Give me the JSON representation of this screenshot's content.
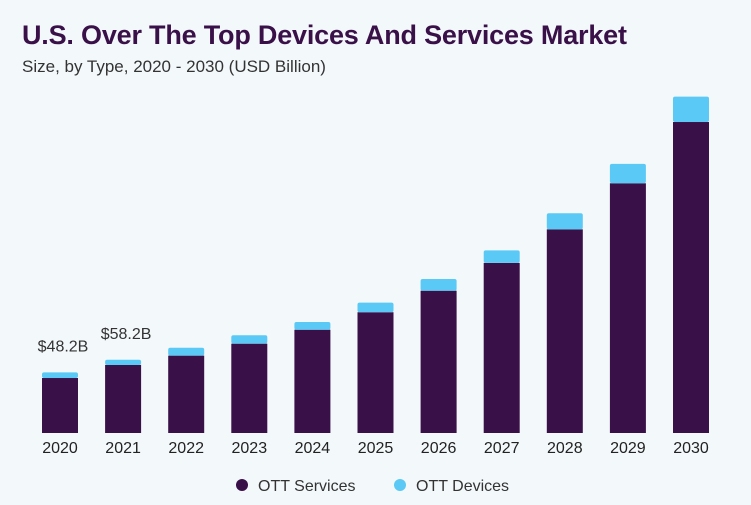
{
  "chart_data": {
    "type": "bar",
    "stacked": true,
    "title": "U.S. Over The Top Devices And Services Market",
    "subtitle": "Size, by Type, 2020 - 2030 (USD Billion)",
    "categories": [
      "2020",
      "2021",
      "2022",
      "2023",
      "2024",
      "2025",
      "2026",
      "2027",
      "2028",
      "2029",
      "2030"
    ],
    "series": [
      {
        "name": "OTT Services",
        "color": "#3a1049",
        "values": [
          43.7,
          54.1,
          61.5,
          71.0,
          82.1,
          96.0,
          113.1,
          135.2,
          161.9,
          198.5,
          247.2
        ]
      },
      {
        "name": "OTT Devices",
        "color": "#5bc9f5",
        "values": [
          4.5,
          4.1,
          6.3,
          6.7,
          6.1,
          7.6,
          9.3,
          10.0,
          12.8,
          15.4,
          20.2
        ]
      }
    ],
    "data_labels": [
      {
        "category": "2020",
        "text": "$48.2B"
      },
      {
        "category": "2021",
        "text": "$58.2B"
      }
    ],
    "xlabel": "",
    "ylabel": "",
    "ylim": [
      0,
      270
    ],
    "y_axis_visible": false,
    "grid": false,
    "legend_position": "bottom"
  }
}
